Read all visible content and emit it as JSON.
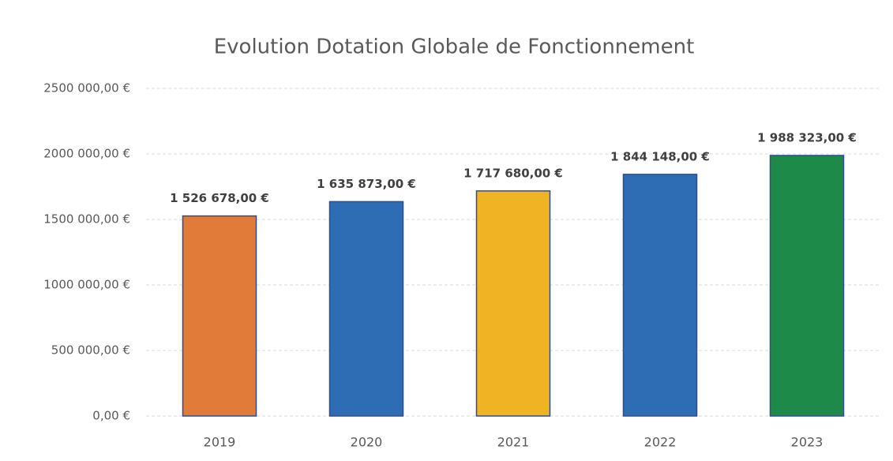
{
  "chart_data": {
    "type": "bar",
    "title": "Evolution Dotation Globale de Fonctionnement",
    "categories": [
      "2019",
      "2020",
      "2021",
      "2022",
      "2023"
    ],
    "values": [
      1526678,
      1635873,
      1717680,
      1844148,
      1988323
    ],
    "value_labels": [
      "1 526 678,00 €",
      "1 635 873,00 €",
      "1 717 680,00 €",
      "1 844 148,00 €",
      "1 988 323,00 €"
    ],
    "colors": [
      "#e07b39",
      "#2e6db4",
      "#f0b323",
      "#2e6db4",
      "#1e8a4a"
    ],
    "ylim": [
      0,
      2500000
    ],
    "yticks": [
      {
        "value": 0,
        "label": "0,00 €"
      },
      {
        "value": 500000,
        "label": "500 000,00 €"
      },
      {
        "value": 1000000,
        "label": "1000 000,00 €"
      },
      {
        "value": 1500000,
        "label": "1500 000,00 €"
      },
      {
        "value": 2000000,
        "label": "2000 000,00 €"
      },
      {
        "value": 2500000,
        "label": "2500 000,00 €"
      }
    ],
    "grid": true
  }
}
